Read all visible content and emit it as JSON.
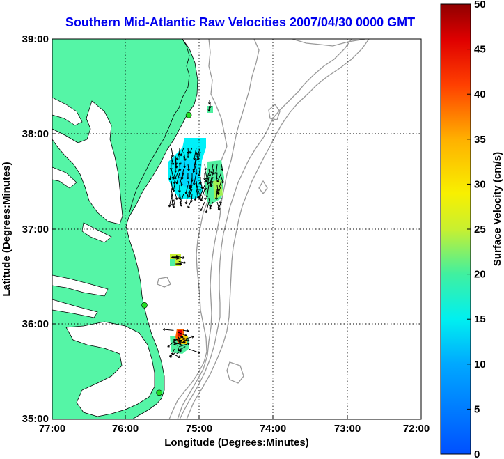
{
  "title": "Southern Mid-Atlantic Raw Velocities 2007/04/30 0000 GMT",
  "xlabel": "Longitude (Degrees:Minutes)",
  "ylabel": "Latitude (Degrees:Minutes)",
  "x_ticks": [
    "77:00",
    "76:00",
    "75:00",
    "74:00",
    "73:00",
    "72:00"
  ],
  "y_ticks": [
    "39:00",
    "38:00",
    "37:00",
    "36:00",
    "35:00"
  ],
  "colorbar": {
    "label": "Surface Velocity (cm/s)",
    "ticks": [
      "0",
      "5",
      "10",
      "15",
      "20",
      "25",
      "30",
      "35",
      "40",
      "45",
      "50"
    ],
    "range": [
      0,
      50
    ]
  },
  "colors": {
    "land": "#55f5a6",
    "contour": "#999999",
    "title": "#0000ee",
    "station": "#22dd22"
  },
  "stations": [
    {
      "lon": -75.15,
      "lat": 38.2
    },
    {
      "lon": -75.75,
      "lat": 36.2
    },
    {
      "lon": -75.55,
      "lat": 35.28
    }
  ]
}
